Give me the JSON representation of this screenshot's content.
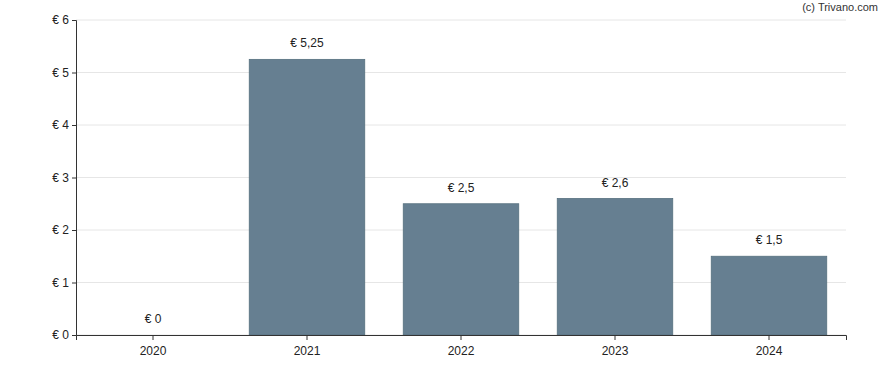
{
  "chart_data": {
    "type": "bar",
    "categories": [
      "2020",
      "2021",
      "2022",
      "2023",
      "2024"
    ],
    "values": [
      0,
      5.25,
      2.5,
      2.6,
      1.5
    ],
    "value_labels": [
      "€ 0",
      "€ 5,25",
      "€ 2,5",
      "€ 2,6",
      "€ 1,5"
    ],
    "data_labels": true,
    "color": "#667f91",
    "ylim": [
      0,
      6
    ],
    "yticks": [
      {
        "value": 0,
        "label": "€ 0"
      },
      {
        "value": 1,
        "label": "€ 1"
      },
      {
        "value": 2,
        "label": "€ 2"
      },
      {
        "value": 3,
        "label": "€ 3"
      },
      {
        "value": 4,
        "label": "€ 4"
      },
      {
        "value": 5,
        "label": "€ 5"
      },
      {
        "value": 6,
        "label": "€ 6"
      }
    ],
    "grid": true,
    "annotations": [
      "(c) Trivano.com"
    ]
  }
}
